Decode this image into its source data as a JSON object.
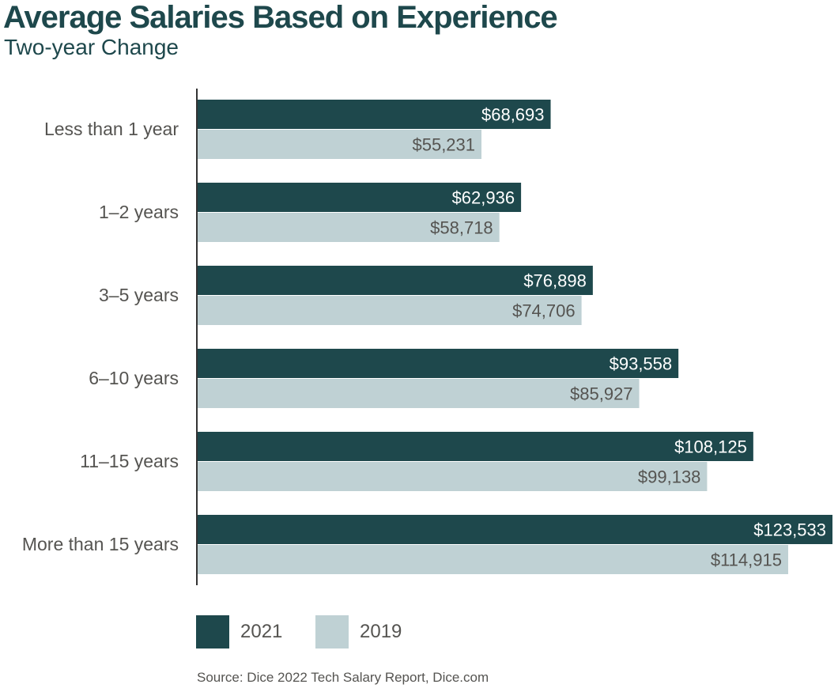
{
  "header": {
    "title": "Average Salaries Based on Experience",
    "subtitle": "Two-year Change"
  },
  "legend": {
    "items": [
      {
        "label": "2021",
        "color": "#1e484c"
      },
      {
        "label": "2019",
        "color": "#bfd1d4"
      }
    ]
  },
  "source": "Source: Dice 2022 Tech Salary Report, Dice.com",
  "colors": {
    "series_2021": "#1e484c",
    "series_2019": "#bfd1d4",
    "label_on_dark": "#ffffff",
    "label_on_light": "#555451",
    "axis": "#333333"
  },
  "chart_data": {
    "type": "bar",
    "orientation": "horizontal",
    "title": "Average Salaries Based on Experience",
    "subtitle": "Two-year Change",
    "categories": [
      "Less than 1 year",
      "1–2 years",
      "3–5 years",
      "6–10 years",
      "11–15 years",
      "More than 15 years"
    ],
    "series": [
      {
        "name": "2021",
        "values": [
          68693,
          62936,
          76898,
          93558,
          108125,
          123533
        ],
        "labels": [
          "$68,693",
          "$62,936",
          "$76,898",
          "$93,558",
          "$108,125",
          "$123,533"
        ]
      },
      {
        "name": "2019",
        "values": [
          55231,
          58718,
          74706,
          85927,
          99138,
          114915
        ],
        "labels": [
          "$55,231",
          "$58,718",
          "$74,706",
          "$85,927",
          "$99,138",
          "$114,915"
        ]
      }
    ],
    "xlim": [
      0,
      123533
    ],
    "grid": false,
    "legend_position": "bottom-left"
  }
}
